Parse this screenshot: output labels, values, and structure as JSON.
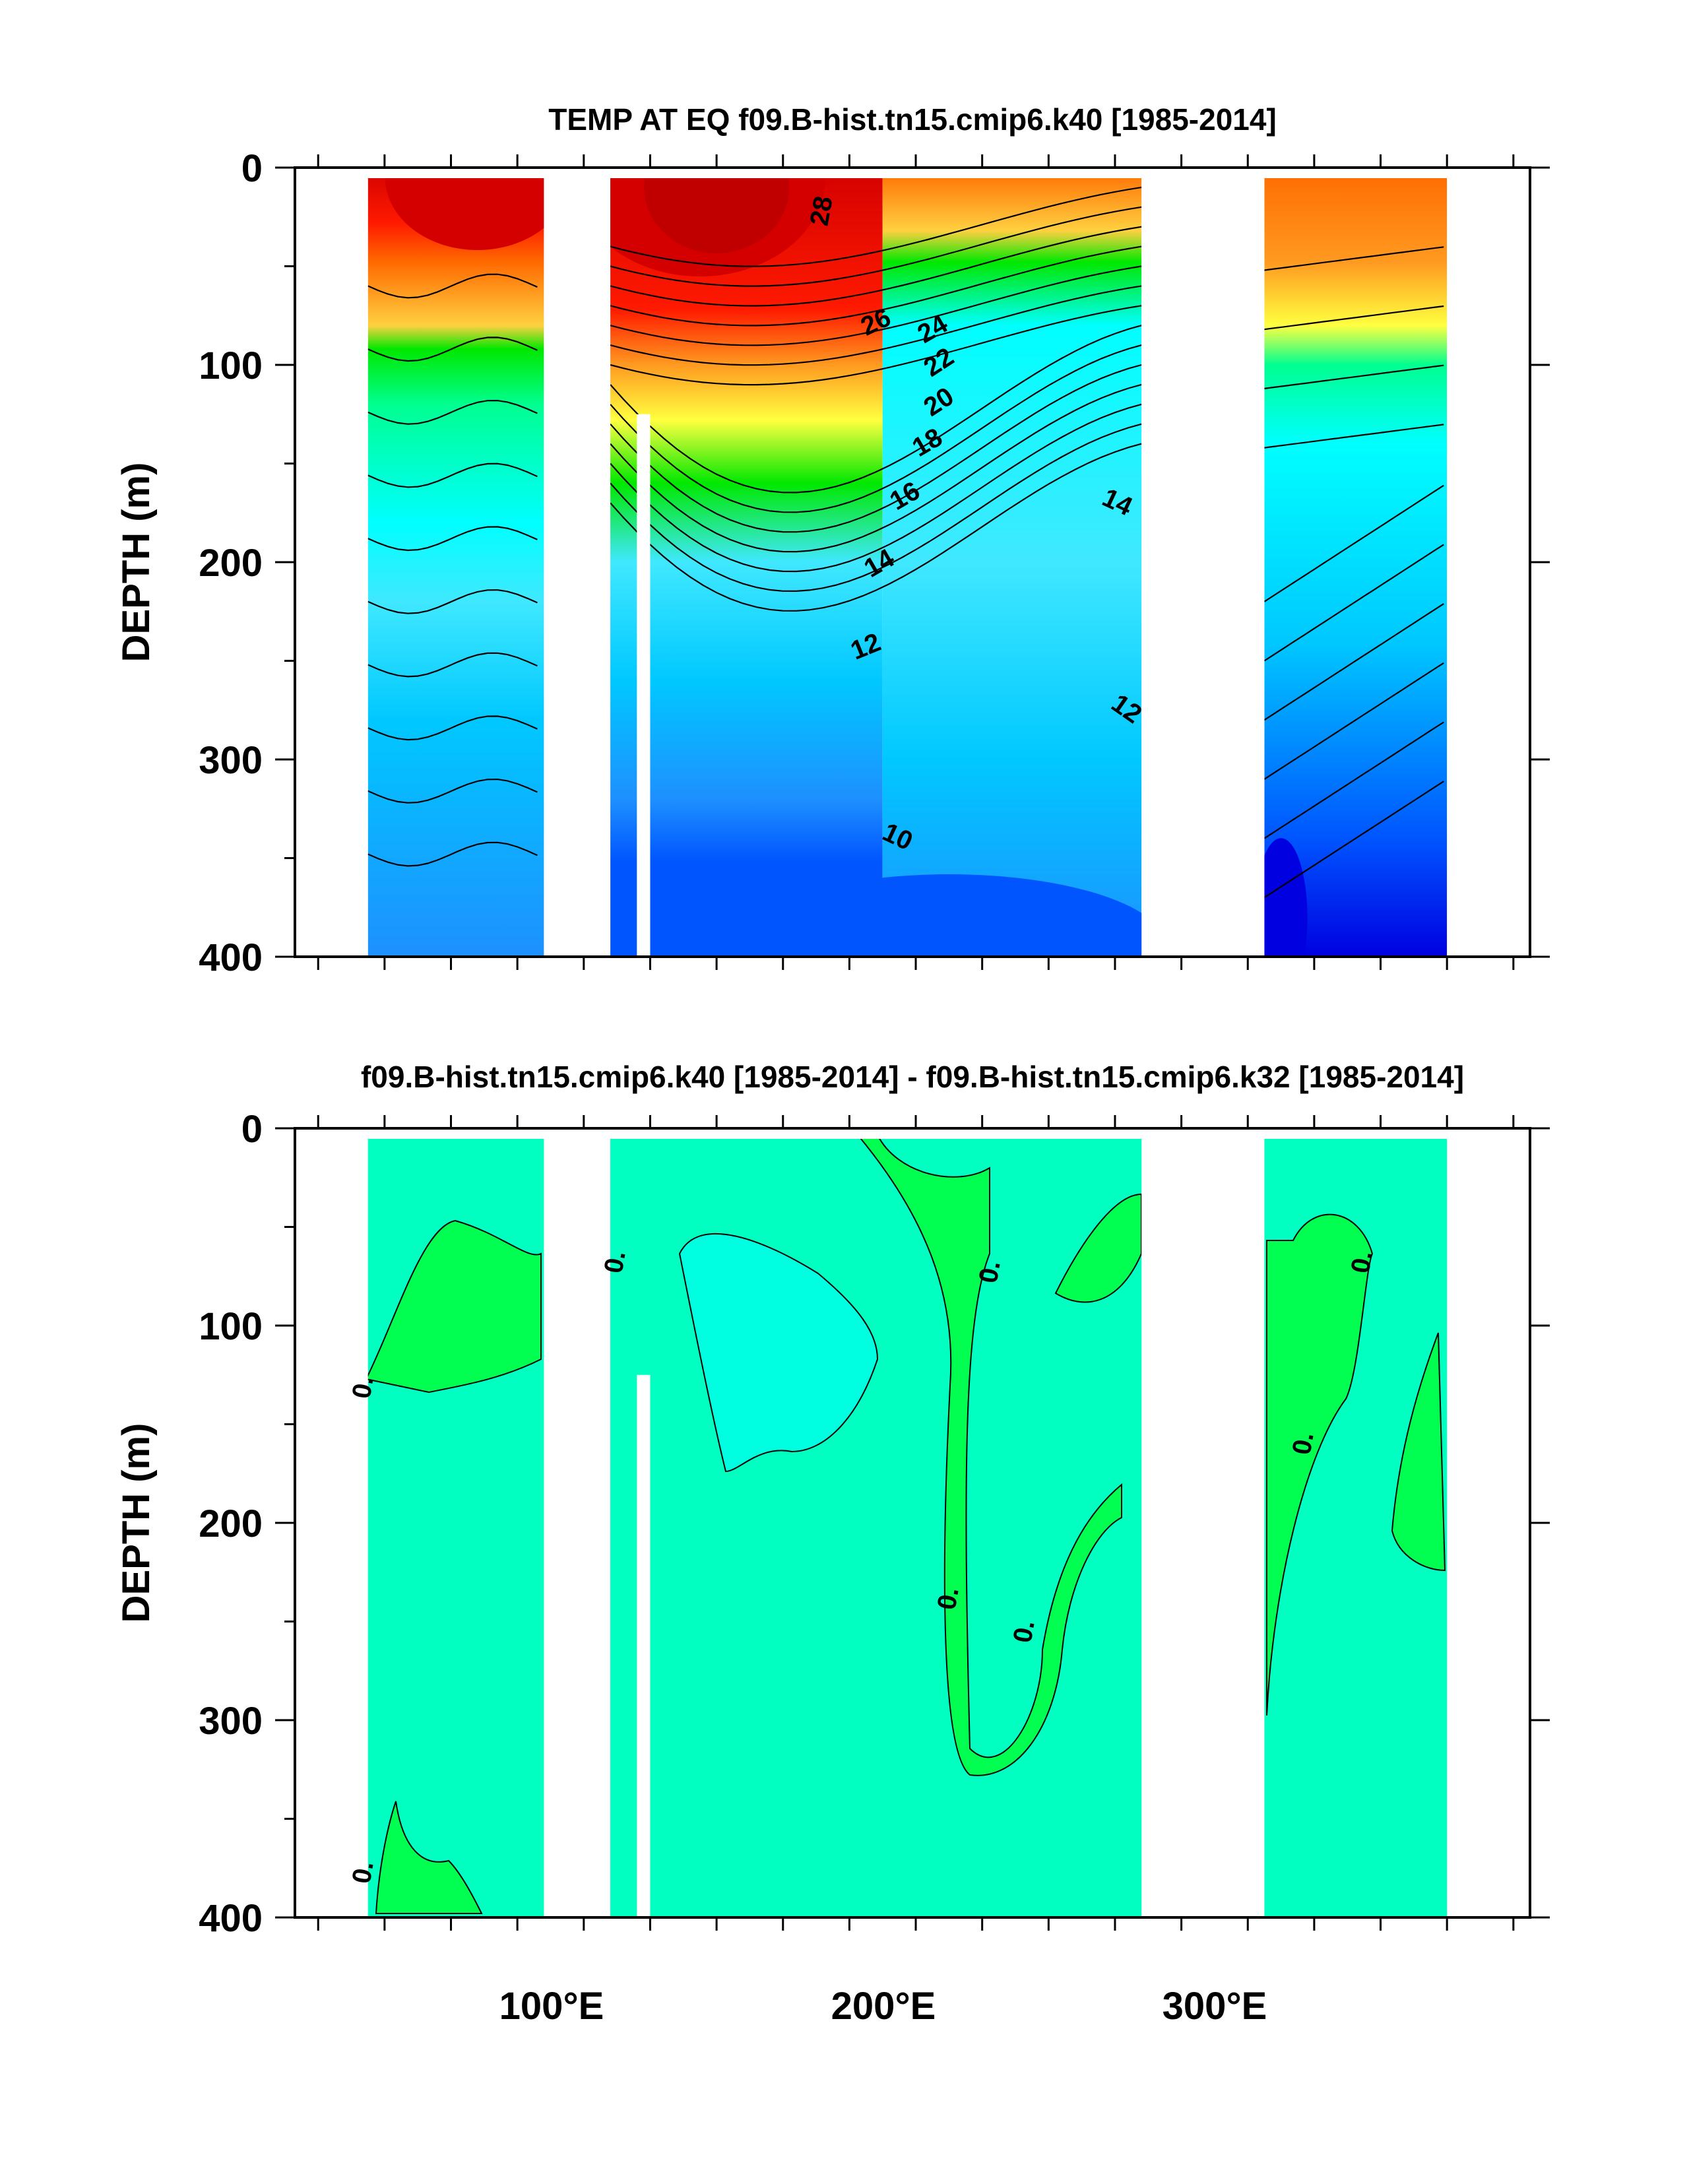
{
  "chart_data": [
    {
      "type": "contour",
      "title": "TEMP AT EQ f09.B-hist.tn15.cmip6.k40 [1985-2014]",
      "xlabel": "",
      "ylabel": "DEPTH (m)",
      "xlim": [
        23,
        395
      ],
      "ylim": [
        400,
        0
      ],
      "x_ticks": [
        100,
        200,
        300
      ],
      "x_tick_labels": [
        "100°E",
        "200°E",
        "300°E"
      ],
      "y_ticks": [
        0,
        100,
        200,
        300,
        400
      ],
      "y_tick_labels": [
        "0",
        "100",
        "200",
        "300",
        "400"
      ],
      "contour_interval": 1,
      "contour_labels": [
        "28",
        "26",
        "24",
        "22",
        "20",
        "18",
        "16",
        "14",
        "14",
        "12",
        "12",
        "10"
      ],
      "ocean_segments_lon": [
        [
          45,
          98
        ],
        [
          118,
          278
        ],
        [
          315,
          370
        ]
      ],
      "land_gaps_lon": [
        [
          98,
          118
        ],
        [
          278,
          315
        ]
      ],
      "colors": {
        "t28": "#d40000",
        "t26": "#ff1a00",
        "t24": "#ff6a00",
        "t22": "#ff9a20",
        "t20": "#ffd040",
        "t18": "#ffff40",
        "t16": "#00e800",
        "t15": "#00ff90",
        "t14": "#00ffff",
        "t13": "#40e8ff",
        "t12": "#00c8ff",
        "t11": "#1e90ff",
        "t10": "#0055ff",
        "t9": "#0000e0",
        "t8": "#7000c0"
      }
    },
    {
      "type": "contour",
      "title": "f09.B-hist.tn15.cmip6.k40 [1985-2014] - f09.B-hist.tn15.cmip6.k32 [1985-2014]",
      "xlabel": "",
      "ylabel": "DEPTH (m)",
      "xlim": [
        23,
        395
      ],
      "ylim": [
        400,
        0
      ],
      "x_ticks": [
        100,
        200,
        300
      ],
      "x_tick_labels": [
        "100°E",
        "200°E",
        "300°E"
      ],
      "y_ticks": [
        0,
        100,
        200,
        300,
        400
      ],
      "y_tick_labels": [
        "0",
        "100",
        "200",
        "300",
        "400"
      ],
      "contour_labels": [
        "0.",
        "0.",
        "0.",
        "0.",
        "0.",
        "0.",
        "0.",
        "0."
      ],
      "colors": {
        "background": "#00ffc0",
        "positive": "#00ff50",
        "negative": "#00ffe0"
      }
    }
  ]
}
